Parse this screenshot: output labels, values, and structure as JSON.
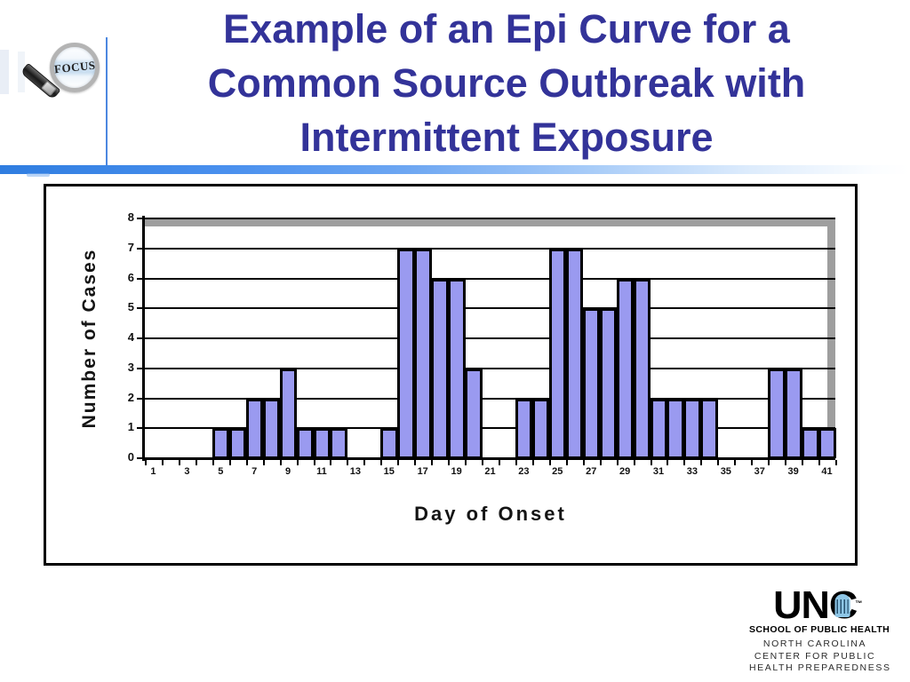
{
  "header": {
    "title_lines": [
      "Example of an Epi Curve for a",
      "Common Source Outbreak with",
      "Intermittent Exposure"
    ],
    "title_color": "#333399"
  },
  "focus_logo": {
    "label": "FOCUS"
  },
  "divider": {
    "accent_color": "#3f87ee"
  },
  "chart_data": {
    "type": "bar",
    "title": "",
    "xlabel": "Day of Onset",
    "ylabel": "Number of Cases",
    "x": [
      1,
      2,
      3,
      4,
      5,
      6,
      7,
      8,
      9,
      10,
      11,
      12,
      13,
      14,
      15,
      16,
      17,
      18,
      19,
      20,
      21,
      22,
      23,
      24,
      25,
      26,
      27,
      28,
      29,
      30,
      31,
      32,
      33,
      34,
      35,
      36,
      37,
      38,
      39,
      40,
      41
    ],
    "values": [
      0,
      0,
      0,
      0,
      1,
      1,
      2,
      2,
      3,
      1,
      1,
      1,
      0,
      0,
      1,
      7,
      7,
      6,
      6,
      3,
      0,
      0,
      2,
      2,
      7,
      7,
      5,
      5,
      6,
      6,
      2,
      2,
      2,
      2,
      0,
      0,
      0,
      3,
      3,
      1,
      1
    ],
    "x_tick_labels": [
      "1",
      "3",
      "5",
      "7",
      "9",
      "11",
      "13",
      "15",
      "17",
      "19",
      "21",
      "23",
      "25",
      "27",
      "29",
      "31",
      "33",
      "35",
      "37",
      "39",
      "41"
    ],
    "y_ticks": [
      "0",
      "1",
      "2",
      "3",
      "4",
      "5",
      "6",
      "7",
      "8"
    ],
    "ylim": [
      0,
      8
    ],
    "grid": true,
    "legend": "none",
    "bar_fill": "#9a9af0",
    "bar_border": "#000000",
    "shadow_color": "#9e9e9e"
  },
  "footer": {
    "brand": "UNC",
    "trademark": "TM",
    "school": "SCHOOL OF PUBLIC HEALTH",
    "center_lines": [
      "NORTH CAROLINA",
      "CENTER FOR PUBLIC",
      "HEALTH PREPAREDNESS"
    ]
  }
}
